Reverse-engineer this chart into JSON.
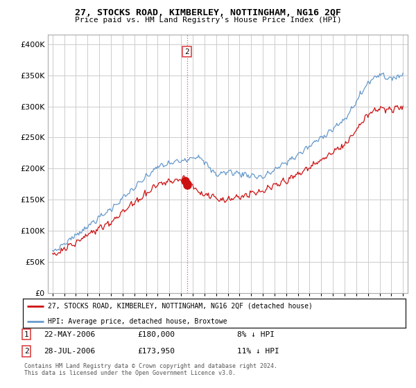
{
  "title": "27, STOCKS ROAD, KIMBERLEY, NOTTINGHAM, NG16 2QF",
  "subtitle": "Price paid vs. HM Land Registry's House Price Index (HPI)",
  "yticks": [
    0,
    50000,
    100000,
    150000,
    200000,
    250000,
    300000,
    350000,
    400000
  ],
  "ylim": [
    0,
    415000
  ],
  "legend_line1": "27, STOCKS ROAD, KIMBERLEY, NOTTINGHAM, NG16 2QF (detached house)",
  "legend_line2": "HPI: Average price, detached house, Broxtowe",
  "transaction1_date": "22-MAY-2006",
  "transaction1_price": "£180,000",
  "transaction1_hpi": "8% ↓ HPI",
  "transaction2_date": "28-JUL-2006",
  "transaction2_price": "£173,950",
  "transaction2_hpi": "11% ↓ HPI",
  "footer": "Contains HM Land Registry data © Crown copyright and database right 2024.\nThis data is licensed under the Open Government Licence v3.0.",
  "hpi_color": "#6699cc",
  "price_color": "#cc1111",
  "vline_color": "#dd4444",
  "background_color": "#ffffff",
  "grid_color": "#cccccc"
}
